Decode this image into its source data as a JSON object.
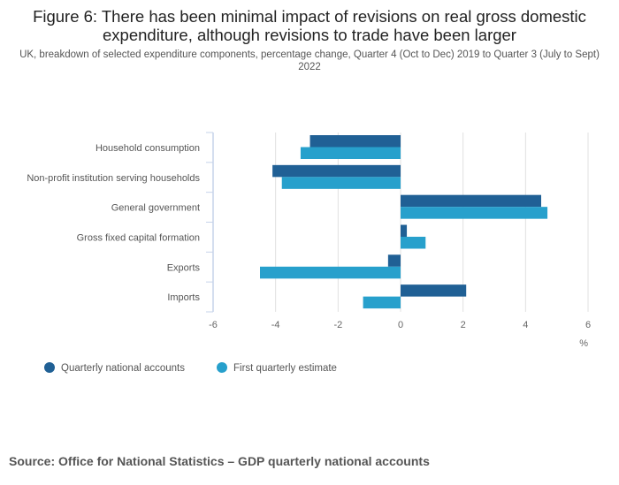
{
  "title": "Figure 6: There has been minimal impact of revisions on real gross domestic expenditure, although revisions to trade have been larger",
  "subtitle": "UK, breakdown of selected expenditure components, percentage change, Quarter 4 (Oct to Dec) 2019 to Quarter 3 (July to Sept) 2022",
  "source": "Source:  Office for National Statistics – GDP quarterly national accounts",
  "colors": {
    "series0": "#206095",
    "series1": "#27a0cc"
  },
  "chart_data": {
    "type": "bar",
    "orientation": "horizontal",
    "categories": [
      "Household consumption",
      "Non-profit institution serving households",
      "General government",
      "Gross fixed capital formation",
      "Exports",
      "Imports"
    ],
    "series": [
      {
        "name": "Quarterly national accounts",
        "values": [
          -2.9,
          -4.1,
          4.5,
          0.2,
          -0.4,
          2.1
        ]
      },
      {
        "name": "First quarterly estimate",
        "values": [
          -3.2,
          -3.8,
          4.7,
          0.8,
          -4.5,
          -1.2
        ]
      }
    ],
    "xlabel": "%",
    "xlim": [
      -6,
      6
    ],
    "xticks": [
      -6,
      -4,
      -2,
      0,
      2,
      4,
      6
    ],
    "grid": true,
    "legend": "bottom-left"
  }
}
